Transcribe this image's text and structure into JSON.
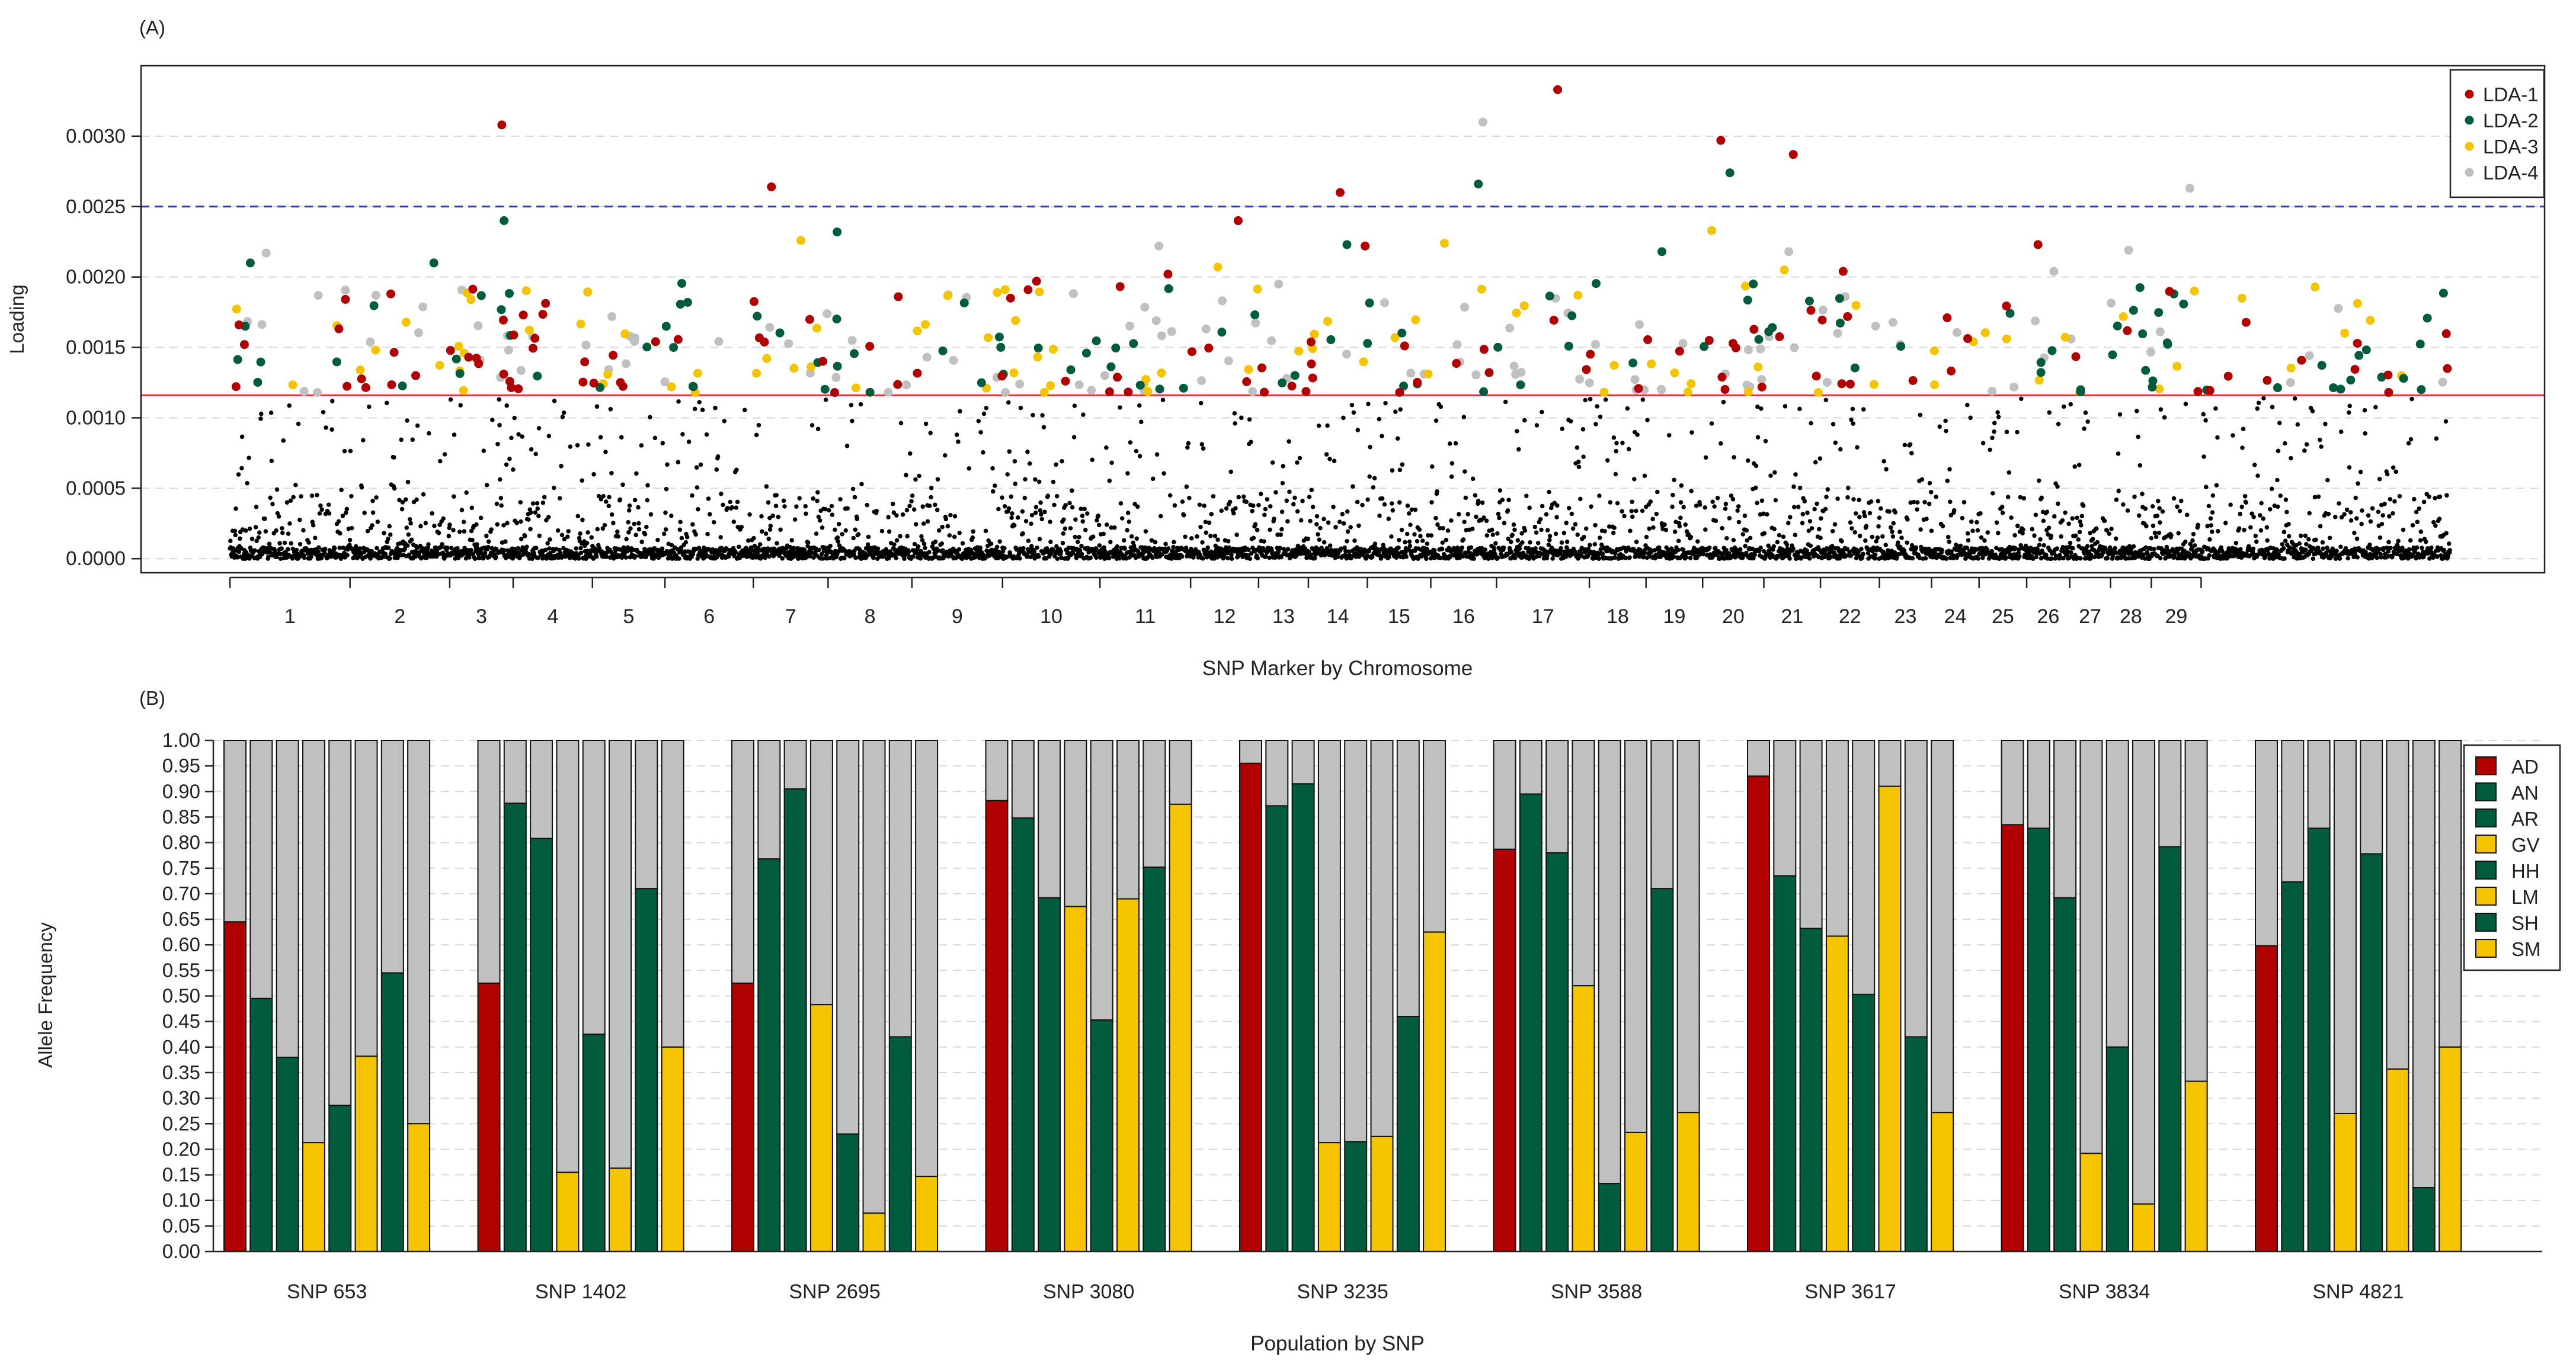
{
  "chart_data": [
    {
      "type": "scatter",
      "panel_label": "(A)",
      "xlabel": "SNP Marker by Chromosome",
      "ylabel": "Loading",
      "ylim": [
        -0.0001,
        0.0035
      ],
      "yticks": [
        "0.0000",
        "0.0005",
        "0.0010",
        "0.0015",
        "0.0020",
        "0.0025",
        "0.0030"
      ],
      "ytick_values": [
        0,
        0.0005,
        0.001,
        0.0015,
        0.002,
        0.0025,
        0.003
      ],
      "marker_count": 4900,
      "grid": true,
      "legend_position": "top-right",
      "thresholds": [
        {
          "name": "significance-threshold",
          "value": 0.00116,
          "color": "#e8303a",
          "style": "solid"
        },
        {
          "name": "upper-threshold",
          "value": 0.0025,
          "color": "#2a3fc9",
          "style": "dashed"
        }
      ],
      "chromosomes": [
        {
          "label": "1",
          "start": 0,
          "end": 265
        },
        {
          "label": "2",
          "start": 265,
          "end": 485
        },
        {
          "label": "3",
          "start": 485,
          "end": 625
        },
        {
          "label": "4",
          "start": 625,
          "end": 800
        },
        {
          "label": "5",
          "start": 800,
          "end": 960
        },
        {
          "label": "6",
          "start": 960,
          "end": 1155
        },
        {
          "label": "7",
          "start": 1155,
          "end": 1320
        },
        {
          "label": "8",
          "start": 1320,
          "end": 1505
        },
        {
          "label": "9",
          "start": 1505,
          "end": 1705
        },
        {
          "label": "10",
          "start": 1705,
          "end": 1920
        },
        {
          "label": "11",
          "start": 1920,
          "end": 2120
        },
        {
          "label": "12",
          "start": 2120,
          "end": 2270
        },
        {
          "label": "13",
          "start": 2270,
          "end": 2380
        },
        {
          "label": "14",
          "start": 2380,
          "end": 2510
        },
        {
          "label": "15",
          "start": 2510,
          "end": 2650
        },
        {
          "label": "16",
          "start": 2650,
          "end": 2795
        },
        {
          "label": "17",
          "start": 2795,
          "end": 3000
        },
        {
          "label": "18",
          "start": 3000,
          "end": 3125
        },
        {
          "label": "19",
          "start": 3125,
          "end": 3250
        },
        {
          "label": "20",
          "start": 3250,
          "end": 3385
        },
        {
          "label": "21",
          "start": 3385,
          "end": 3510
        },
        {
          "label": "22",
          "start": 3510,
          "end": 3640
        },
        {
          "label": "23",
          "start": 3640,
          "end": 3755
        },
        {
          "label": "24",
          "start": 3755,
          "end": 3860
        },
        {
          "label": "25",
          "start": 3860,
          "end": 3965
        },
        {
          "label": "26",
          "start": 3965,
          "end": 4060
        },
        {
          "label": "27",
          "start": 4060,
          "end": 4150
        },
        {
          "label": "28",
          "start": 4150,
          "end": 4240
        },
        {
          "label": "29",
          "start": 4240,
          "end": 4350
        }
      ],
      "series": [
        {
          "name": "LDA-1",
          "color": "#b00000"
        },
        {
          "name": "LDA-2",
          "color": "#005c3d"
        },
        {
          "name": "LDA-3",
          "color": "#f5c400"
        },
        {
          "name": "LDA-4",
          "color": "#c0c0c0"
        }
      ],
      "highlighted_points": [
        {
          "series": "LDA-1",
          "x": 20,
          "y": 0.00166
        },
        {
          "series": "LDA-1",
          "x": 355,
          "y": 0.00188
        },
        {
          "series": "LDA-1",
          "x": 600,
          "y": 0.00308
        },
        {
          "series": "LDA-1",
          "x": 1195,
          "y": 0.00264
        },
        {
          "series": "LDA-1",
          "x": 2225,
          "y": 0.0024
        },
        {
          "series": "LDA-1",
          "x": 2450,
          "y": 0.0026
        },
        {
          "series": "LDA-1",
          "x": 2505,
          "y": 0.00222
        },
        {
          "series": "LDA-1",
          "x": 2930,
          "y": 0.00333
        },
        {
          "series": "LDA-1",
          "x": 3290,
          "y": 0.00297
        },
        {
          "series": "LDA-1",
          "x": 3450,
          "y": 0.00287
        },
        {
          "series": "LDA-1",
          "x": 3560,
          "y": 0.00204
        },
        {
          "series": "LDA-1",
          "x": 3990,
          "y": 0.00223
        },
        {
          "series": "LDA-1",
          "x": 1780,
          "y": 0.00197
        },
        {
          "series": "LDA-1",
          "x": 2070,
          "y": 0.00202
        },
        {
          "series": "LDA-1",
          "x": 1475,
          "y": 0.00186
        },
        {
          "series": "LDA-2",
          "x": 45,
          "y": 0.0021
        },
        {
          "series": "LDA-2",
          "x": 450,
          "y": 0.0021
        },
        {
          "series": "LDA-2",
          "x": 605,
          "y": 0.0024
        },
        {
          "series": "LDA-2",
          "x": 1340,
          "y": 0.00232
        },
        {
          "series": "LDA-2",
          "x": 2465,
          "y": 0.00223
        },
        {
          "series": "LDA-2",
          "x": 2755,
          "y": 0.00266
        },
        {
          "series": "LDA-2",
          "x": 3310,
          "y": 0.00274
        },
        {
          "series": "LDA-2",
          "x": 3160,
          "y": 0.00218
        },
        {
          "series": "LDA-2",
          "x": 1010,
          "y": 0.00182
        },
        {
          "series": "LDA-2",
          "x": 4290,
          "y": 0.00188
        },
        {
          "series": "LDA-3",
          "x": 1260,
          "y": 0.00226
        },
        {
          "series": "LDA-3",
          "x": 2180,
          "y": 0.00207
        },
        {
          "series": "LDA-3",
          "x": 2680,
          "y": 0.00224
        },
        {
          "series": "LDA-3",
          "x": 3270,
          "y": 0.00233
        },
        {
          "series": "LDA-3",
          "x": 3430,
          "y": 0.00205
        },
        {
          "series": "LDA-3",
          "x": 4335,
          "y": 0.0019
        },
        {
          "series": "LDA-4",
          "x": 80,
          "y": 0.00217
        },
        {
          "series": "LDA-4",
          "x": 2050,
          "y": 0.00222
        },
        {
          "series": "LDA-4",
          "x": 2765,
          "y": 0.0031
        },
        {
          "series": "LDA-4",
          "x": 3440,
          "y": 0.00218
        },
        {
          "series": "LDA-4",
          "x": 4025,
          "y": 0.00204
        },
        {
          "series": "LDA-4",
          "x": 4190,
          "y": 0.00219
        },
        {
          "series": "LDA-4",
          "x": 4325,
          "y": 0.00263
        }
      ]
    },
    {
      "type": "bar",
      "stacked": true,
      "panel_label": "(B)",
      "xlabel": "Population by SNP",
      "ylabel": "Allele Frequency",
      "ylim": [
        0,
        1
      ],
      "yticks": [
        "0.00",
        "0.05",
        "0.10",
        "0.15",
        "0.20",
        "0.25",
        "0.30",
        "0.35",
        "0.40",
        "0.45",
        "0.50",
        "0.55",
        "0.60",
        "0.65",
        "0.70",
        "0.75",
        "0.80",
        "0.85",
        "0.90",
        "0.95",
        "1.00"
      ],
      "grid": true,
      "legend_position": "right",
      "remainder_color": "#c0c0c0",
      "populations": [
        {
          "name": "AD",
          "color": "#b00000"
        },
        {
          "name": "AN",
          "color": "#005c3d"
        },
        {
          "name": "AR",
          "color": "#005c3d"
        },
        {
          "name": "GV",
          "color": "#f5c400"
        },
        {
          "name": "HH",
          "color": "#005c3d"
        },
        {
          "name": "LM",
          "color": "#f5c400"
        },
        {
          "name": "SH",
          "color": "#005c3d"
        },
        {
          "name": "SM",
          "color": "#f5c400"
        }
      ],
      "categories": [
        "SNP 653",
        "SNP 1402",
        "SNP 2695",
        "SNP 3080",
        "SNP 3235",
        "SNP 3588",
        "SNP 3617",
        "SNP 3834",
        "SNP 4821"
      ],
      "values": [
        [
          0.645,
          0.495,
          0.38,
          0.213,
          0.286,
          0.382,
          0.545,
          0.25
        ],
        [
          0.525,
          0.877,
          0.808,
          0.155,
          0.425,
          0.163,
          0.71,
          0.4
        ],
        [
          0.525,
          0.768,
          0.905,
          0.483,
          0.23,
          0.075,
          0.42,
          0.147
        ],
        [
          0.882,
          0.848,
          0.692,
          0.675,
          0.453,
          0.69,
          0.752,
          0.875
        ],
        [
          0.955,
          0.872,
          0.915,
          0.213,
          0.215,
          0.225,
          0.46,
          0.625
        ],
        [
          0.787,
          0.895,
          0.78,
          0.52,
          0.133,
          0.233,
          0.71,
          0.272
        ],
        [
          0.93,
          0.735,
          0.632,
          0.617,
          0.503,
          0.91,
          0.42,
          0.272
        ],
        [
          0.835,
          0.828,
          0.692,
          0.192,
          0.4,
          0.093,
          0.792,
          0.333
        ],
        [
          0.598,
          0.723,
          0.828,
          0.27,
          0.778,
          0.357,
          0.125,
          0.4
        ]
      ]
    }
  ]
}
